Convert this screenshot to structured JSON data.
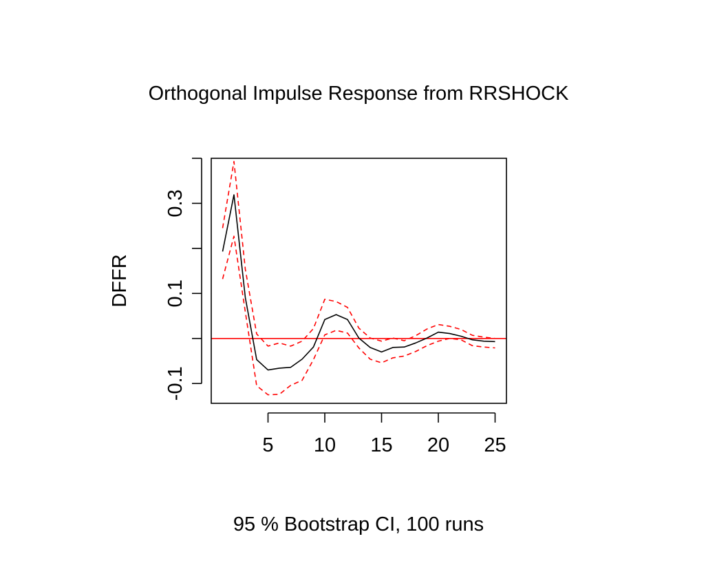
{
  "chart_data": {
    "type": "line",
    "title": "Orthogonal Impulse Response from RRSHOCK",
    "xlabel": "95 % Bootstrap CI,  100 runs",
    "ylabel": "DFFR",
    "xlim": [
      0,
      26
    ],
    "ylim": [
      -0.144,
      0.4
    ],
    "x_ticks": [
      5,
      10,
      15,
      20,
      25
    ],
    "x_tick_labels": [
      "5",
      "10",
      "15",
      "20",
      "25"
    ],
    "y_ticks": [
      -0.1,
      0,
      0.1,
      0.2,
      0.3,
      0.4
    ],
    "y_tick_labels": [
      "-0.1",
      "",
      "0.1",
      "",
      "0.3",
      ""
    ],
    "grid": false,
    "x": [
      1,
      2,
      3,
      4,
      5,
      6,
      7,
      8,
      9,
      10,
      11,
      12,
      13,
      14,
      15,
      16,
      17,
      18,
      19,
      20,
      21,
      22,
      23,
      24,
      25
    ],
    "series": [
      {
        "name": "DFFR",
        "color": "#000000",
        "dash": "solid",
        "values": [
          0.193,
          0.319,
          0.091,
          -0.047,
          -0.07,
          -0.066,
          -0.064,
          -0.046,
          -0.019,
          0.042,
          0.053,
          0.042,
          0.001,
          -0.02,
          -0.03,
          -0.02,
          -0.019,
          -0.01,
          0.001,
          0.014,
          0.011,
          0.005,
          -0.003,
          -0.006,
          -0.007
        ]
      },
      {
        "name": "Upper",
        "color": "#ff0000",
        "dash": "dashed",
        "values": [
          0.245,
          0.393,
          0.154,
          0.01,
          -0.017,
          -0.01,
          -0.017,
          -0.006,
          0.022,
          0.087,
          0.082,
          0.069,
          0.023,
          0.001,
          -0.006,
          0.001,
          -0.005,
          0.006,
          0.021,
          0.031,
          0.027,
          0.02,
          0.007,
          0.003,
          0.0
        ]
      },
      {
        "name": "Lower",
        "color": "#ff0000",
        "dash": "dashed",
        "values": [
          0.132,
          0.227,
          0.059,
          -0.105,
          -0.125,
          -0.124,
          -0.104,
          -0.093,
          -0.047,
          0.008,
          0.018,
          0.012,
          -0.021,
          -0.046,
          -0.054,
          -0.043,
          -0.039,
          -0.029,
          -0.016,
          -0.006,
          0.0,
          -0.003,
          -0.016,
          -0.019,
          -0.021
        ]
      }
    ],
    "reference_line": {
      "y": 0,
      "color": "#ff0000"
    }
  }
}
